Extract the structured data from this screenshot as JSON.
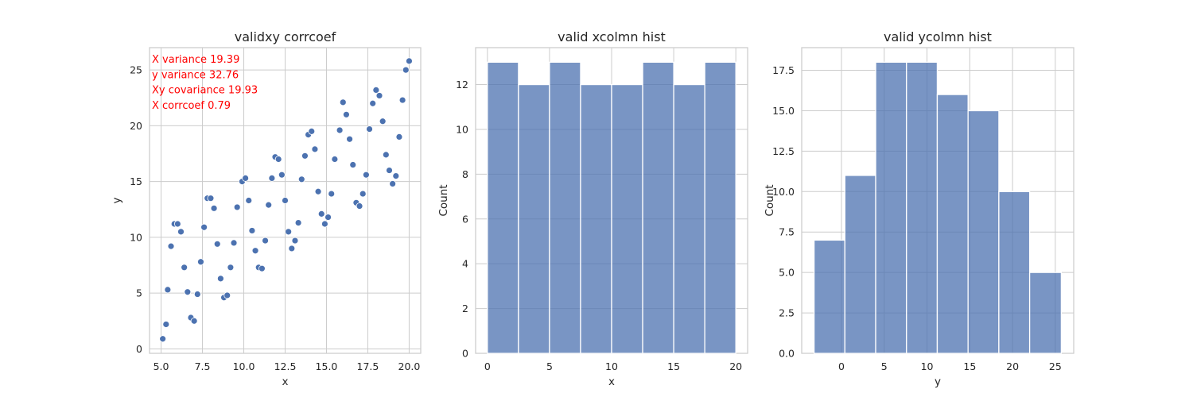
{
  "chart_data": [
    {
      "type": "scatter",
      "title": "validxy corrcoef",
      "xlabel": "x",
      "ylabel": "y",
      "xlim": [
        4.3,
        20.7
      ],
      "ylim": [
        -0.4,
        27
      ],
      "xticks": [
        5.0,
        7.5,
        10.0,
        12.5,
        15.0,
        17.5,
        20.0
      ],
      "xtick_labels": [
        "5.0",
        "7.5",
        "10.0",
        "12.5",
        "15.0",
        "17.5",
        "20.0"
      ],
      "yticks": [
        0,
        5,
        10,
        15,
        20,
        25
      ],
      "ytick_labels": [
        "0",
        "5",
        "10",
        "15",
        "20",
        "25"
      ],
      "grid": true,
      "marker_color": "#4c72b0",
      "annotation_color": "#ff0000",
      "annotations": [
        "X variance 19.39",
        "y variance 32.76",
        "Xy covariance 19.93",
        "X corrcoef 0.79"
      ],
      "points": [
        [
          5.1,
          0.9
        ],
        [
          5.3,
          2.2
        ],
        [
          5.4,
          5.3
        ],
        [
          5.6,
          9.2
        ],
        [
          5.8,
          11.2
        ],
        [
          6.0,
          11.2
        ],
        [
          6.2,
          10.5
        ],
        [
          6.4,
          7.3
        ],
        [
          6.6,
          5.1
        ],
        [
          6.8,
          2.8
        ],
        [
          7.0,
          2.5
        ],
        [
          7.2,
          4.9
        ],
        [
          7.4,
          7.8
        ],
        [
          7.6,
          10.9
        ],
        [
          7.8,
          13.5
        ],
        [
          8.0,
          13.5
        ],
        [
          8.2,
          12.6
        ],
        [
          8.4,
          9.4
        ],
        [
          8.6,
          6.3
        ],
        [
          8.8,
          4.6
        ],
        [
          9.0,
          4.8
        ],
        [
          9.2,
          7.3
        ],
        [
          9.4,
          9.5
        ],
        [
          9.6,
          12.7
        ],
        [
          9.9,
          15.0
        ],
        [
          10.1,
          15.3
        ],
        [
          10.3,
          13.3
        ],
        [
          10.5,
          10.6
        ],
        [
          10.7,
          8.8
        ],
        [
          10.9,
          7.3
        ],
        [
          11.1,
          7.2
        ],
        [
          11.3,
          9.7
        ],
        [
          11.5,
          12.9
        ],
        [
          11.7,
          15.3
        ],
        [
          11.9,
          17.2
        ],
        [
          12.1,
          17.0
        ],
        [
          12.3,
          15.6
        ],
        [
          12.5,
          13.3
        ],
        [
          12.7,
          10.5
        ],
        [
          12.9,
          9.0
        ],
        [
          13.1,
          9.7
        ],
        [
          13.3,
          11.3
        ],
        [
          13.5,
          15.2
        ],
        [
          13.7,
          17.3
        ],
        [
          13.9,
          19.2
        ],
        [
          14.1,
          19.5
        ],
        [
          14.3,
          17.9
        ],
        [
          14.5,
          14.1
        ],
        [
          14.7,
          12.1
        ],
        [
          14.9,
          11.2
        ],
        [
          15.1,
          11.8
        ],
        [
          15.3,
          13.9
        ],
        [
          15.5,
          17.0
        ],
        [
          15.8,
          19.6
        ],
        [
          16.0,
          22.1
        ],
        [
          16.2,
          21.0
        ],
        [
          16.4,
          18.8
        ],
        [
          16.6,
          16.5
        ],
        [
          16.8,
          13.1
        ],
        [
          17.0,
          12.8
        ],
        [
          17.2,
          13.9
        ],
        [
          17.4,
          15.6
        ],
        [
          17.6,
          19.7
        ],
        [
          17.8,
          22.0
        ],
        [
          18.0,
          23.2
        ],
        [
          18.2,
          22.7
        ],
        [
          18.4,
          20.4
        ],
        [
          18.6,
          17.4
        ],
        [
          18.8,
          16.0
        ],
        [
          19.0,
          14.8
        ],
        [
          19.2,
          15.5
        ],
        [
          19.4,
          19.0
        ],
        [
          19.6,
          22.3
        ],
        [
          19.8,
          25.0
        ],
        [
          20.0,
          25.8
        ]
      ]
    },
    {
      "type": "bar",
      "title": "valid xcolmn hist",
      "xlabel": "x",
      "ylabel": "Count",
      "xlim": [
        -0.95,
        20.95
      ],
      "ylim": [
        0,
        13.65
      ],
      "xticks": [
        0,
        5,
        10,
        15,
        20
      ],
      "xtick_labels": [
        "0",
        "5",
        "10",
        "15",
        "20"
      ],
      "yticks": [
        0,
        2,
        4,
        6,
        8,
        10,
        12
      ],
      "ytick_labels": [
        "0",
        "2",
        "4",
        "6",
        "8",
        "10",
        "12"
      ],
      "grid": true,
      "bar_color": "#4c72b0",
      "bin_edges": [
        0,
        2.5,
        5,
        7.5,
        10,
        12.5,
        15,
        17.5,
        20
      ],
      "values": [
        13,
        12,
        13,
        12,
        12,
        13,
        12,
        13
      ]
    },
    {
      "type": "bar",
      "title": "valid ycolmn hist",
      "xlabel": "y",
      "ylabel": "Count",
      "xlim": [
        -4.65,
        27.15
      ],
      "ylim": [
        0,
        18.9
      ],
      "xticks": [
        0,
        5,
        10,
        15,
        20,
        25
      ],
      "xtick_labels": [
        "0",
        "5",
        "10",
        "15",
        "20",
        "25"
      ],
      "yticks": [
        0,
        2.5,
        5,
        7.5,
        10,
        12.5,
        15,
        17.5
      ],
      "ytick_labels": [
        "0.0",
        "2.5",
        "5.0",
        "7.5",
        "10.0",
        "12.5",
        "15.0",
        "17.5"
      ],
      "grid": true,
      "bar_color": "#4c72b0",
      "bin_edges": [
        -3.2,
        0.4,
        4.0,
        7.6,
        11.2,
        14.8,
        18.4,
        22.0,
        25.7
      ],
      "values": [
        7,
        11,
        18,
        18,
        16,
        15,
        10,
        5
      ]
    }
  ]
}
